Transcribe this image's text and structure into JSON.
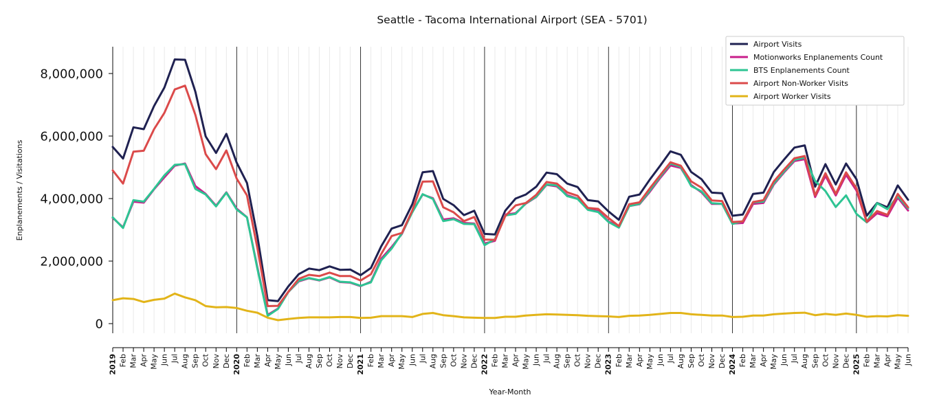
{
  "chart_data": {
    "type": "line",
    "title": "Seattle - Tacoma International Airport (SEA - 5701)",
    "xlabel": "Year-Month",
    "ylabel": "Enplanements / Visitations",
    "ylim": [
      -700000,
      8900000
    ],
    "yticks": [
      0,
      2000000,
      4000000,
      6000000,
      8000000
    ],
    "ytick_labels": [
      "0",
      "2,000,000",
      "4,000,000",
      "6,000,000",
      "8,000,000"
    ],
    "grid": "vertical monthly gridlines; thin black lines at each January",
    "legend_position": "top-right",
    "x": [
      "2019",
      "Feb",
      "Mar",
      "Apr",
      "May",
      "Jun",
      "Jul",
      "Aug",
      "Sep",
      "Oct",
      "Nov",
      "Dec",
      "2020",
      "Feb",
      "Mar",
      "Apr",
      "May",
      "Jun",
      "Jul",
      "Aug",
      "Sep",
      "Oct",
      "Nov",
      "Dec",
      "2021",
      "Feb",
      "Mar",
      "Apr",
      "May",
      "Jun",
      "Jul",
      "Aug",
      "Sep",
      "Oct",
      "Nov",
      "Dec",
      "2022",
      "Feb",
      "Mar",
      "Apr",
      "May",
      "Jun",
      "Jul",
      "Aug",
      "Sep",
      "Oct",
      "Nov",
      "Dec",
      "2023",
      "Feb",
      "Mar",
      "Apr",
      "May",
      "Jun",
      "Jul",
      "Aug",
      "Sep",
      "Oct",
      "Nov",
      "Dec",
      "2024",
      "Feb",
      "Mar",
      "Apr",
      "May",
      "Jun",
      "Jul",
      "Aug",
      "Sep",
      "Oct",
      "Nov",
      "Dec",
      "2025",
      "Feb",
      "Mar",
      "Apr",
      "May",
      "Jun"
    ],
    "year_tick_labels": [
      "2019",
      "2020",
      "2021",
      "2022",
      "2023",
      "2024",
      "2025"
    ],
    "series": [
      {
        "name": "Airport Visits",
        "color": "#1f2151",
        "values": [
          5650000,
          5280000,
          6280000,
          6220000,
          6960000,
          7550000,
          8450000,
          8440000,
          7420000,
          5990000,
          5460000,
          6070000,
          5150000,
          4500000,
          2800000,
          750000,
          720000,
          1190000,
          1580000,
          1760000,
          1710000,
          1830000,
          1720000,
          1730000,
          1550000,
          1780000,
          2480000,
          3040000,
          3150000,
          3820000,
          4840000,
          4880000,
          3990000,
          3790000,
          3470000,
          3610000,
          2870000,
          2850000,
          3610000,
          4000000,
          4130000,
          4380000,
          4830000,
          4780000,
          4480000,
          4370000,
          3950000,
          3910000,
          3590000,
          3320000,
          4060000,
          4130000,
          4610000,
          5050000,
          5510000,
          5400000,
          4850000,
          4620000,
          4190000,
          4170000,
          3450000,
          3490000,
          4150000,
          4190000,
          4850000,
          5250000,
          5630000,
          5700000,
          4380000,
          5100000,
          4450000,
          5120000,
          4620000,
          3450000,
          3860000,
          3720000,
          4420000,
          3960000
        ]
      },
      {
        "name": "Motionworks Enplanements Count",
        "color": "#c81e8a",
        "values": [
          3380000,
          3080000,
          3900000,
          3870000,
          4300000,
          4680000,
          5050000,
          5120000,
          4400000,
          4150000,
          3770000,
          4200000,
          3680000,
          3400000,
          1800000,
          280000,
          480000,
          1010000,
          1350000,
          1450000,
          1380000,
          1480000,
          1330000,
          1310000,
          1200000,
          1340000,
          2080000,
          2450000,
          2870000,
          3580000,
          4130000,
          4010000,
          3330000,
          3370000,
          3220000,
          3200000,
          2560000,
          2650000,
          3490000,
          3530000,
          3840000,
          4050000,
          4440000,
          4390000,
          4110000,
          4000000,
          3650000,
          3600000,
          3270000,
          3100000,
          3760000,
          3820000,
          4220000,
          4660000,
          5060000,
          4980000,
          4430000,
          4200000,
          3830000,
          3830000,
          3200000,
          3220000,
          3830000,
          3860000,
          4450000,
          4840000,
          5200000,
          5260000,
          4050000,
          4730000,
          4100000,
          4760000,
          4260000,
          3240000,
          3530000,
          3430000,
          4030000,
          3620000
        ]
      },
      {
        "name": "BTS Enplanements Count",
        "color": "#2ec493",
        "values": [
          3400000,
          3060000,
          3950000,
          3900000,
          4310000,
          4740000,
          5080000,
          5100000,
          4310000,
          4130000,
          3750000,
          4190000,
          3650000,
          3400000,
          1760000,
          250000,
          470000,
          1010000,
          1370000,
          1460000,
          1390000,
          1490000,
          1340000,
          1320000,
          1210000,
          1320000,
          2030000,
          2400000,
          2890000,
          3560000,
          4140000,
          3990000,
          3280000,
          3340000,
          3190000,
          3180000,
          2510000,
          2700000,
          3460000,
          3510000,
          3850000,
          4060000,
          4450000,
          4420000,
          4080000,
          3990000,
          3640000,
          3570000,
          3250000,
          3070000,
          3760000,
          3830000,
          4260000,
          4700000,
          5120000,
          5010000,
          4400000,
          4230000,
          3850000,
          3830000,
          3190000,
          3280000,
          3880000,
          3900000,
          4480000,
          4870000,
          5240000,
          5310000,
          4560000,
          4240000,
          3730000,
          4100000,
          3510000,
          3240000,
          3850000,
          3660000,
          4080000,
          3690000
        ]
      },
      {
        "name": "Airport Non-Worker Visits",
        "color": "#db4a4a",
        "values": [
          4900000,
          4480000,
          5500000,
          5530000,
          6220000,
          6740000,
          7490000,
          7610000,
          6680000,
          5420000,
          4940000,
          5540000,
          4640000,
          4100000,
          2420000,
          560000,
          570000,
          1020000,
          1430000,
          1560000,
          1520000,
          1630000,
          1520000,
          1520000,
          1380000,
          1580000,
          2230000,
          2800000,
          2900000,
          3620000,
          4540000,
          4550000,
          3720000,
          3560000,
          3280000,
          3410000,
          2690000,
          2680000,
          3440000,
          3780000,
          3860000,
          4120000,
          4530000,
          4480000,
          4200000,
          4090000,
          3700000,
          3670000,
          3380000,
          3120000,
          3820000,
          3880000,
          4330000,
          4750000,
          5160000,
          5050000,
          4550000,
          4350000,
          3940000,
          3920000,
          3250000,
          3270000,
          3890000,
          3950000,
          4550000,
          4930000,
          5290000,
          5360000,
          4100000,
          4810000,
          4150000,
          4840000,
          4330000,
          3260000,
          3600000,
          3480000,
          4150000,
          3720000
        ]
      },
      {
        "name": "Airport Worker Visits",
        "color": "#e2b419",
        "values": [
          750000,
          810000,
          790000,
          690000,
          760000,
          800000,
          960000,
          840000,
          750000,
          560000,
          520000,
          530000,
          500000,
          410000,
          350000,
          190000,
          110000,
          150000,
          180000,
          200000,
          200000,
          200000,
          210000,
          210000,
          180000,
          190000,
          240000,
          240000,
          240000,
          210000,
          310000,
          340000,
          270000,
          240000,
          200000,
          190000,
          180000,
          180000,
          220000,
          220000,
          260000,
          280000,
          300000,
          290000,
          280000,
          270000,
          250000,
          240000,
          230000,
          210000,
          250000,
          260000,
          280000,
          310000,
          340000,
          340000,
          300000,
          280000,
          260000,
          260000,
          210000,
          220000,
          260000,
          260000,
          300000,
          320000,
          340000,
          350000,
          270000,
          310000,
          280000,
          320000,
          280000,
          220000,
          240000,
          230000,
          270000,
          250000
        ]
      }
    ]
  }
}
